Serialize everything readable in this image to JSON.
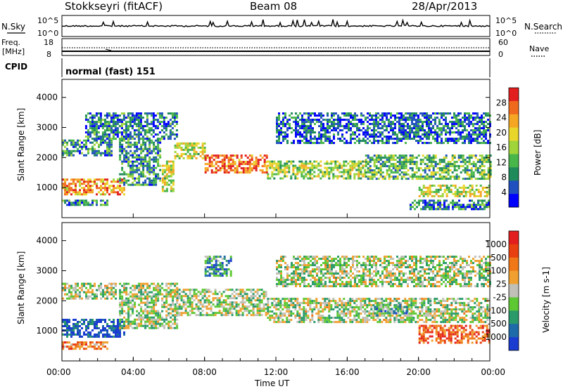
{
  "header": {
    "station": "Stokkseyri (fitACF)",
    "beam": "Beam 08",
    "date": "28/Apr/2013"
  },
  "top_panels": {
    "nsky_label": "N.Sky",
    "nsky_ticks": [
      "10^5",
      "10^0"
    ],
    "nsearch_label": "N.Search",
    "nsearch_ticks": [
      "10^5",
      "10^0"
    ],
    "freq_label_1": "Freq.",
    "freq_label_2": "[MHz]",
    "freq_ticks": [
      "18",
      "8"
    ],
    "nave_label": "Nave",
    "nave_ticks": [
      "60",
      "0"
    ],
    "cpid_label": "CPID",
    "cpid_value": "normal (fast) 151"
  },
  "chart_data": [
    {
      "type": "heatmap",
      "name": "power-panel",
      "ylabel": "Slant Range [km]",
      "yticks": [
        1000,
        2000,
        3000,
        4000
      ],
      "ylim": [
        0,
        4600
      ],
      "xlim_hours": [
        0,
        24
      ],
      "colorbar_label": "Power [dB]",
      "colorbar_ticks": [
        "28",
        "24",
        "20",
        "16",
        "12",
        "8",
        "4"
      ],
      "colorbar_colors": [
        "#0000ff",
        "#2050c0",
        "#1f8a5a",
        "#49b64a",
        "#9fd43a",
        "#e8d62a",
        "#f5a623",
        "#f06a1e",
        "#e31e1e"
      ],
      "echo_bands": [
        {
          "t0": 0.0,
          "t1": 2.8,
          "r0": 2100,
          "r1": 2600,
          "level": 0.3
        },
        {
          "t0": 0.0,
          "t1": 3.5,
          "r0": 750,
          "r1": 1300,
          "level": 0.75
        },
        {
          "t0": 0.0,
          "t1": 2.5,
          "r0": 400,
          "r1": 600,
          "level": 0.3
        },
        {
          "t0": 3.2,
          "t1": 5.5,
          "r0": 1100,
          "r1": 2600,
          "level": 0.3
        },
        {
          "t0": 5.6,
          "t1": 6.2,
          "r0": 900,
          "r1": 1900,
          "level": 0.55
        },
        {
          "t0": 1.3,
          "t1": 6.5,
          "r0": 2600,
          "r1": 3500,
          "level": 0.25
        },
        {
          "t0": 6.3,
          "t1": 8.0,
          "r0": 2000,
          "r1": 2500,
          "level": 0.55
        },
        {
          "t0": 8.0,
          "t1": 11.5,
          "r0": 1500,
          "r1": 2100,
          "level": 0.85
        },
        {
          "t0": 11.5,
          "t1": 17.0,
          "r0": 1300,
          "r1": 1900,
          "level": 0.5
        },
        {
          "t0": 17.0,
          "t1": 24.0,
          "r0": 1300,
          "r1": 2100,
          "level": 0.4
        },
        {
          "t0": 12.0,
          "t1": 24.0,
          "r0": 2500,
          "r1": 3500,
          "level": 0.2
        },
        {
          "t0": 20.0,
          "t1": 24.0,
          "r0": 700,
          "r1": 1100,
          "level": 0.55
        },
        {
          "t0": 19.5,
          "t1": 24.0,
          "r0": 300,
          "r1": 600,
          "level": 0.25
        }
      ]
    },
    {
      "type": "heatmap",
      "name": "velocity-panel",
      "ylabel": "Slant Range [km]",
      "yticks": [
        1000,
        2000,
        3000,
        4000
      ],
      "ylim": [
        0,
        4600
      ],
      "xlim_hours": [
        0,
        24
      ],
      "xticks": [
        "00:00",
        "04:00",
        "08:00",
        "12:00",
        "16:00",
        "20:00",
        "00:00"
      ],
      "xlabel": "Time UT",
      "colorbar_label": "Velocity [m s-1]",
      "colorbar_ticks": [
        "1000",
        "500",
        "100",
        "25",
        "-25",
        "-100",
        "-500",
        "-1000"
      ],
      "colorbar_colors": [
        "#1a3cd0",
        "#1f6aa8",
        "#2a9a6a",
        "#5dc832",
        "#c0c0b8",
        "#f0a030",
        "#f07818",
        "#e84010",
        "#e31e1e"
      ],
      "echo_bands": [
        {
          "t0": 0.0,
          "t1": 3.0,
          "r0": 2100,
          "r1": 2600,
          "level": 0.45
        },
        {
          "t0": 0.0,
          "t1": 3.5,
          "r0": 800,
          "r1": 1400,
          "level": 0.1
        },
        {
          "t0": 0.0,
          "t1": 2.5,
          "r0": 400,
          "r1": 650,
          "level": 0.7
        },
        {
          "t0": 3.2,
          "t1": 6.5,
          "r0": 1100,
          "r1": 2600,
          "level": 0.45
        },
        {
          "t0": 6.3,
          "t1": 11.5,
          "r0": 1500,
          "r1": 2400,
          "level": 0.45
        },
        {
          "t0": 11.5,
          "t1": 24.0,
          "r0": 1300,
          "r1": 2100,
          "level": 0.45
        },
        {
          "t0": 8.0,
          "t1": 9.5,
          "r0": 2800,
          "r1": 3500,
          "level": 0.25
        },
        {
          "t0": 12.0,
          "t1": 24.0,
          "r0": 2500,
          "r1": 3500,
          "level": 0.45
        },
        {
          "t0": 20.0,
          "t1": 24.0,
          "r0": 600,
          "r1": 1200,
          "level": 0.8
        },
        {
          "t0": 17.5,
          "t1": 19.5,
          "r0": 1500,
          "r1": 1900,
          "level": 0.3
        }
      ]
    }
  ]
}
